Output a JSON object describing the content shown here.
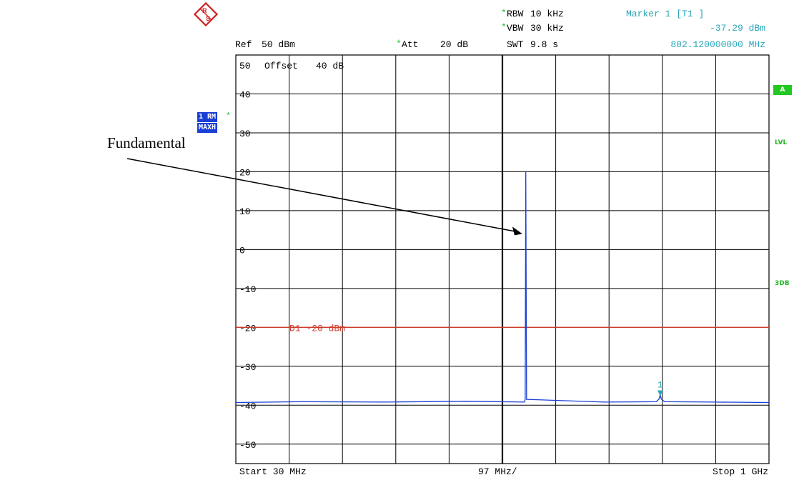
{
  "header": {
    "rbw_label": "RBW",
    "rbw_value": "10 kHz",
    "vbw_label": "VBW",
    "vbw_value": "30 kHz",
    "swt_label": "SWT",
    "swt_value": "9.8 s",
    "ref_label": "Ref",
    "ref_value": "50 dBm",
    "att_label": "Att",
    "att_value": "20 dB",
    "star": "*",
    "marker_title": "Marker 1 [T1 ]",
    "marker_level": "-37.29 dBm",
    "marker_freq": "802.120000000 MHz"
  },
  "trace_badge": {
    "line1": "1 RM",
    "line2": "MAXH",
    "star": "*"
  },
  "side_badges": {
    "a": "A",
    "lvl": "LVL",
    "db3": "3DB"
  },
  "footer": {
    "start": "Start 30 MHz",
    "div": "97 MHz/",
    "stop": "Stop 1 GHz"
  },
  "annotation": {
    "label": "Fundamental"
  },
  "colors": {
    "trace": "#1a3fd6",
    "display_line": "#d03a2a",
    "marker": "#2aa7b8",
    "grid": "#000000",
    "status_green": "#22c822"
  },
  "chart_data": {
    "type": "line",
    "title": "",
    "xlabel": "",
    "ylabel": "",
    "xlim": [
      30,
      1000
    ],
    "ylim": [
      -55,
      50
    ],
    "y_unit": "dBm",
    "y_ticks": [
      50,
      40,
      30,
      20,
      10,
      0,
      -10,
      -20,
      -30,
      -40,
      -50
    ],
    "offset_label": "Offset",
    "offset_value": "40 dB",
    "display_line": {
      "name": "D1",
      "value": -20,
      "label": "D1  -20 dBm"
    },
    "series": [
      {
        "x": [
          30,
          150,
          300,
          450,
          555,
          556.5,
          557.5,
          559,
          700,
          795,
          800,
          802.12,
          804,
          810,
          900,
          1000
        ],
        "y": [
          -39.3,
          -39.1,
          -39.2,
          -39.0,
          -39.2,
          -38.5,
          20,
          -38.5,
          -39.2,
          -39.1,
          -38.4,
          -37.29,
          -38.4,
          -39.1,
          -39.2,
          -39.3
        ]
      }
    ],
    "marker": {
      "label": "1",
      "x": 802.12,
      "y": -37.29
    }
  }
}
